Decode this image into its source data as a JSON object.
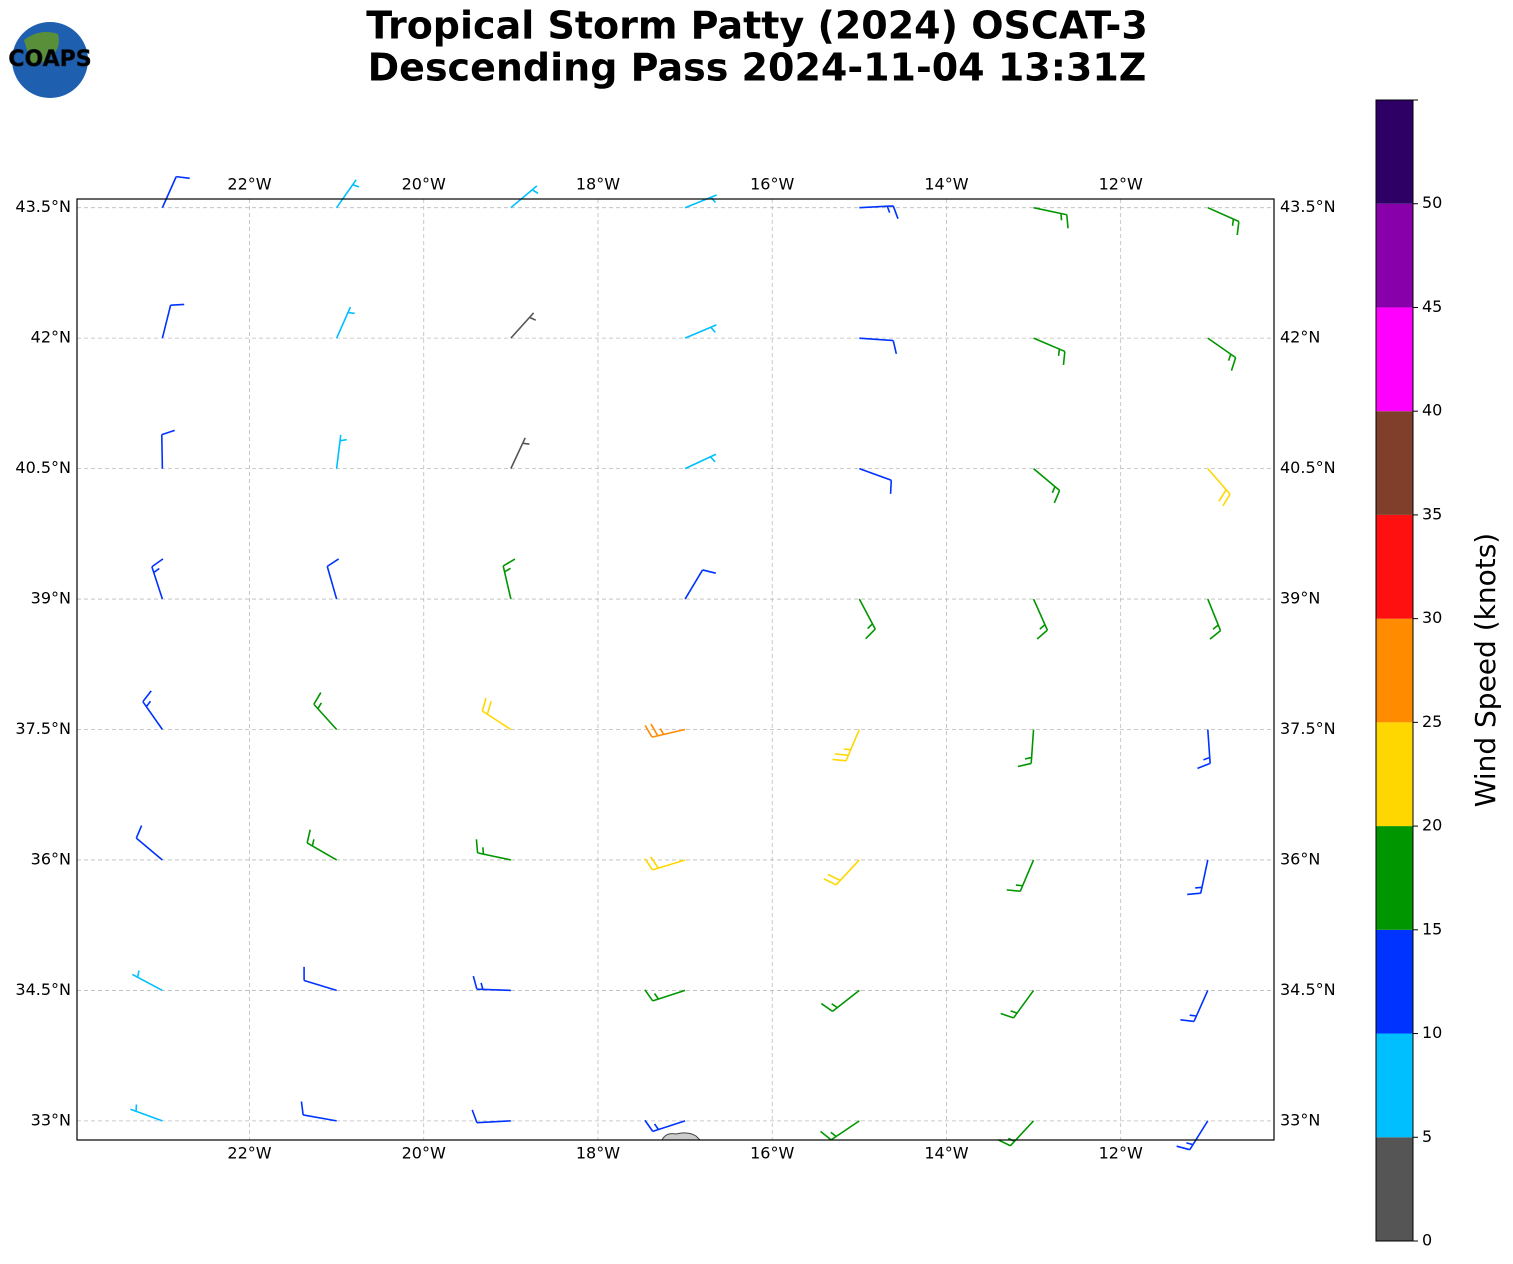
{
  "chart_data": {
    "type": "wind-barbs",
    "logo": "COAPS",
    "title": "Tropical Storm Patty (2024) OSCAT-3",
    "subtitle": "Descending Pass 2024-11-04 13:31Z",
    "xlim": [
      -23.98,
      -10.24
    ],
    "ylim": [
      32.78,
      43.6
    ],
    "xticks": [
      {
        "value": -22,
        "label": "22°W"
      },
      {
        "value": -20,
        "label": "20°W"
      },
      {
        "value": -18,
        "label": "18°W"
      },
      {
        "value": -16,
        "label": "16°W"
      },
      {
        "value": -14,
        "label": "14°W"
      },
      {
        "value": -12,
        "label": "12°W"
      }
    ],
    "yticks": [
      {
        "value": 33,
        "label": "33°N"
      },
      {
        "value": 34.5,
        "label": "34.5°N"
      },
      {
        "value": 36,
        "label": "36°N"
      },
      {
        "value": 37.5,
        "label": "37.5°N"
      },
      {
        "value": 39,
        "label": "39°N"
      },
      {
        "value": 40.5,
        "label": "40.5°N"
      },
      {
        "value": 42,
        "label": "42°N"
      },
      {
        "value": 43.5,
        "label": "43.5°N"
      }
    ],
    "grid": true,
    "lon": [
      -23,
      -21,
      -19,
      -17,
      -15,
      -13,
      -11
    ],
    "lat": [
      43.5,
      42,
      40.5,
      39,
      37.5,
      36,
      34.5,
      33
    ],
    "speed": [
      [
        12,
        9,
        8,
        9,
        13,
        17,
        18
      ],
      [
        12,
        8,
        4,
        8,
        12,
        16,
        18
      ],
      [
        12,
        9,
        4,
        8,
        12,
        17,
        22
      ],
      [
        13,
        12,
        16,
        11,
        18,
        19,
        17
      ],
      [
        14,
        17,
        22,
        29,
        23,
        18,
        14
      ],
      [
        12,
        15,
        18,
        21,
        22,
        18,
        13
      ],
      [
        8,
        12,
        13,
        16,
        18,
        16,
        13
      ],
      [
        8,
        12,
        12,
        14,
        15,
        17,
        13
      ]
    ],
    "direction": [
      [
        24,
        35,
        50,
        68,
        87,
        102,
        114
      ],
      [
        14,
        24,
        42,
        67,
        94,
        113,
        125
      ],
      [
        359,
        7,
        25,
        65,
        110,
        130,
        139
      ],
      [
        342,
        344,
        347,
        31,
        152,
        156,
        158
      ],
      [
        325,
        318,
        303,
        257,
        203,
        184,
        176
      ],
      [
        310,
        300,
        282,
        253,
        223,
        203,
        192
      ],
      [
        298,
        287,
        272,
        252,
        232,
        216,
        204
      ],
      [
        290,
        280,
        267,
        252,
        236,
        223,
        212
      ]
    ],
    "colorbar": {
      "label": "Wind Speed (knots)",
      "bounds": [
        0,
        5,
        10,
        15,
        20,
        25,
        30,
        35,
        40,
        45,
        50,
        55
      ],
      "colors": [
        "#555555",
        "#00bfff",
        "#0033ff",
        "#009600",
        "#ffd700",
        "#ff8c00",
        "#ff1010",
        "#7f3f2a",
        "#ff00ff",
        "#8800aa",
        "#2e0066"
      ],
      "ticks": [
        0,
        5,
        10,
        15,
        20,
        25,
        30,
        35,
        40,
        45,
        50
      ]
    }
  }
}
